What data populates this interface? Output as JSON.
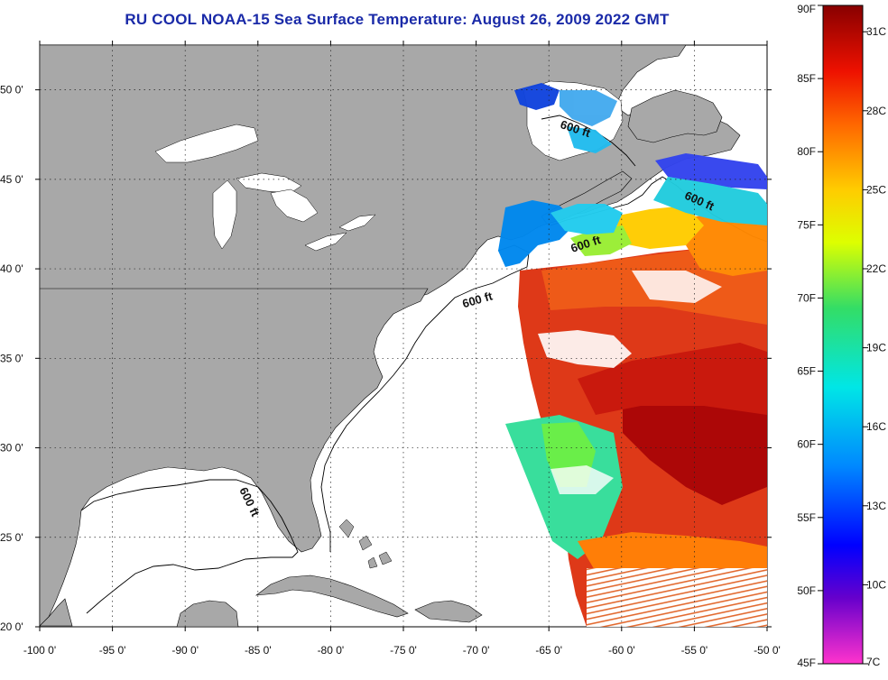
{
  "title": "RU COOL  NOAA-15  Sea Surface Temperature:  August 26, 2009 2022 GMT",
  "map": {
    "lon_ticks": [
      "-100 0'",
      "-95 0'",
      "-90 0'",
      "-85 0'",
      "-80 0'",
      "-75 0'",
      "-70 0'",
      "-65 0'",
      "-60 0'",
      "-55 0'",
      "-50 0'"
    ],
    "lat_ticks": [
      "50 0'",
      "45 0'",
      "40 0'",
      "35 0'",
      "30 0'",
      "25 0'",
      "20 0'"
    ],
    "lon_range": [
      -100,
      -50
    ],
    "lat_range": [
      20,
      52.5
    ],
    "gridlines": "dotted",
    "land_color": "#a8a8a8",
    "isobath_label": "600 ft"
  },
  "colorbar": {
    "fahrenheit_labels": [
      "90F",
      "85F",
      "80F",
      "75F",
      "70F",
      "65F",
      "60F",
      "55F",
      "50F",
      "45F"
    ],
    "celsius_labels": [
      "31C",
      "28C",
      "25C",
      "22C",
      "19C",
      "16C",
      "13C",
      "10C",
      "7C"
    ],
    "range_f": [
      45,
      90
    ],
    "range_c": [
      7,
      32
    ]
  }
}
